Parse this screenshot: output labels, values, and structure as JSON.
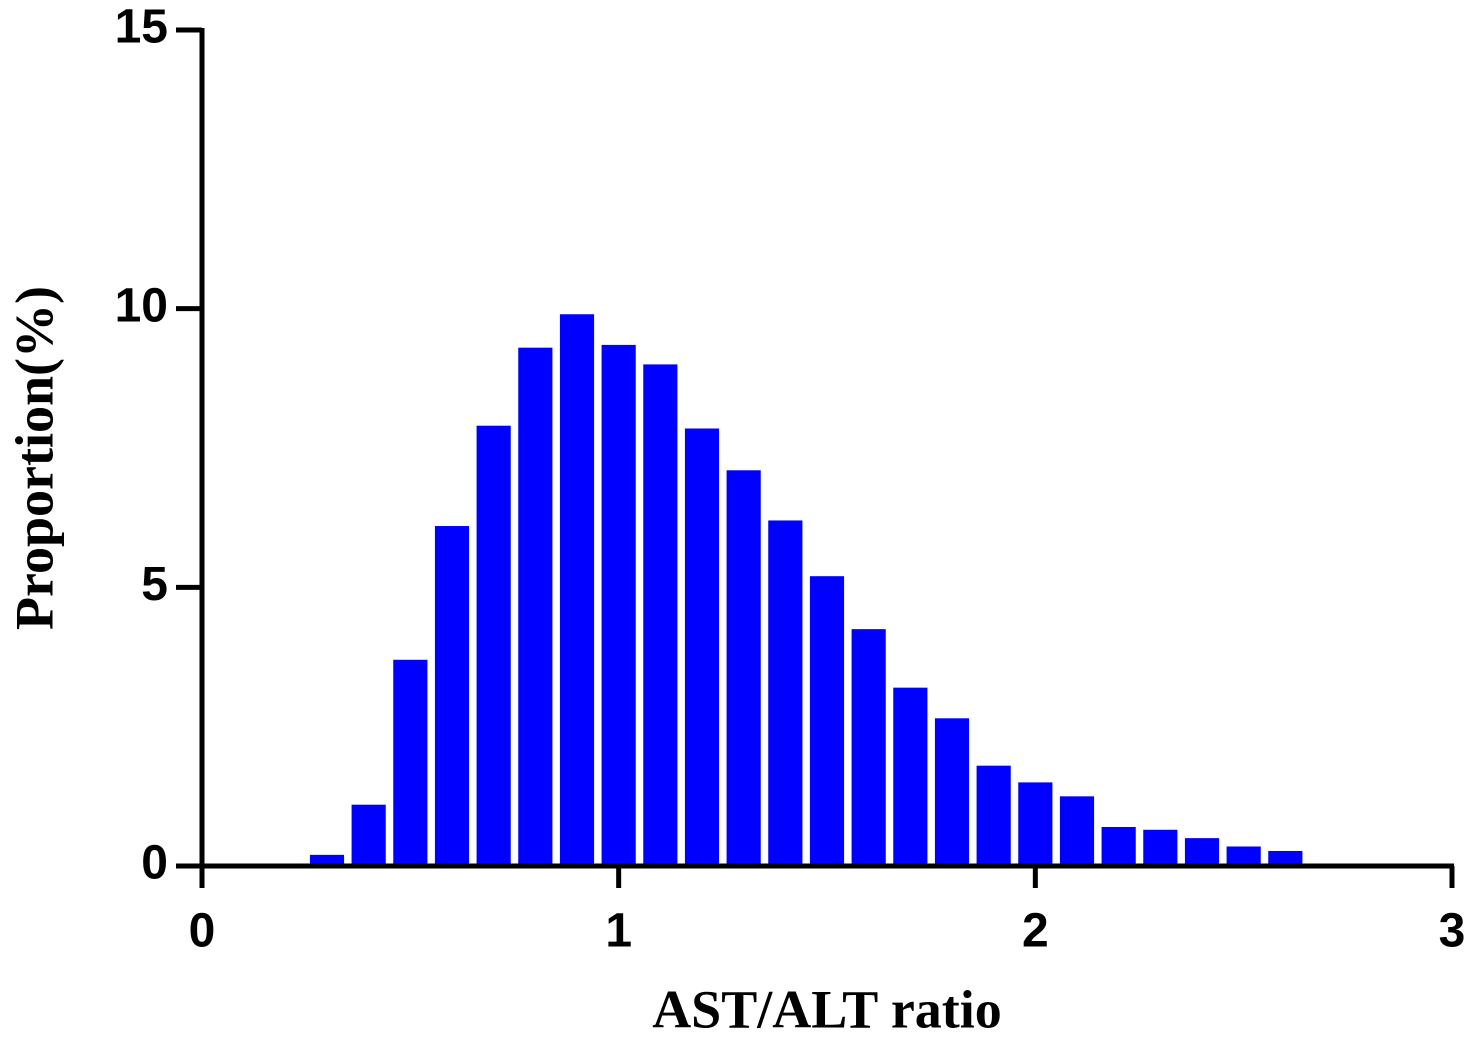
{
  "chart_data": {
    "type": "histogram",
    "x_label": "AST/ALT ratio",
    "y_label": "Proportion(%)",
    "bins": [
      0.25,
      0.35,
      0.45,
      0.55,
      0.65,
      0.75,
      0.85,
      0.95,
      1.05,
      1.15,
      1.25,
      1.35,
      1.45,
      1.55,
      1.65,
      1.75,
      1.85,
      1.95,
      2.05,
      2.15,
      2.25,
      2.35,
      2.45,
      2.55,
      2.65
    ],
    "counts": [
      0.2,
      1.1,
      3.7,
      6.1,
      7.9,
      9.3,
      9.9,
      9.35,
      9.0,
      7.85,
      7.1,
      6.2,
      5.2,
      4.25,
      3.2,
      2.65,
      1.8,
      1.5,
      1.25,
      0.7,
      0.65,
      0.5,
      0.35,
      0.27
    ],
    "color": "#0000ff",
    "xlim": [
      0,
      3
    ],
    "xticks": [
      0,
      1,
      2,
      3
    ],
    "ylim": [
      0,
      15
    ],
    "yticks": [
      0,
      5,
      10,
      15
    ],
    "grid": false
  }
}
